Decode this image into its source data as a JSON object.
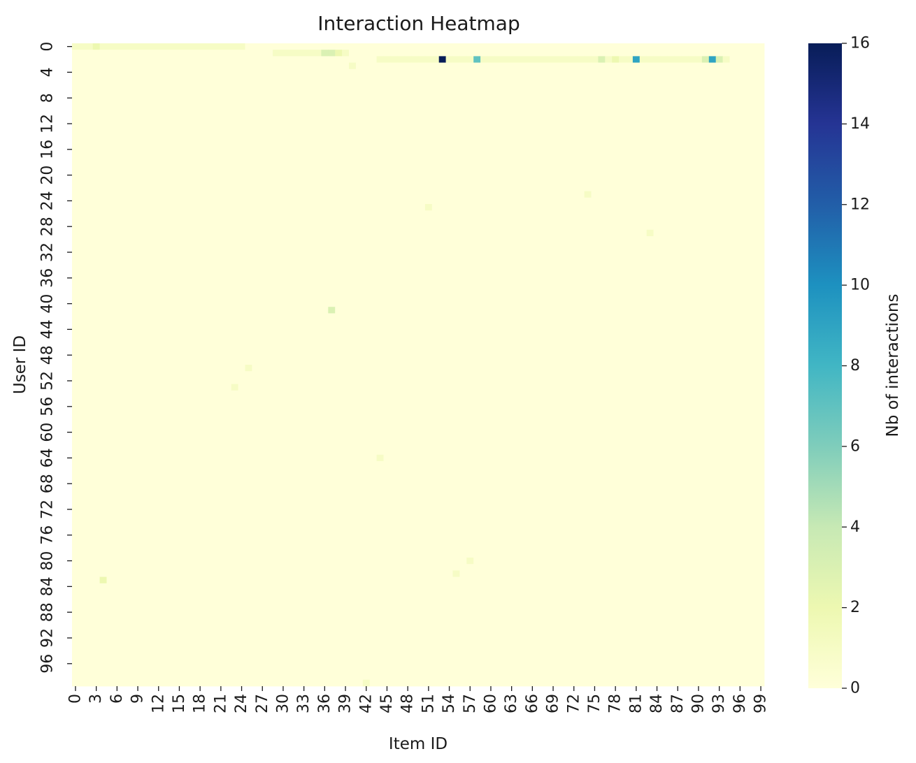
{
  "chart_data": {
    "type": "heatmap",
    "title": "Interaction Heatmap",
    "xlabel": "Item ID",
    "ylabel": "User ID",
    "colorbar_label": "Nb of interactions",
    "colormap": "YlGnBu",
    "colormap_stops": [
      "#ffffd9",
      "#edf8b1",
      "#c7e9b4",
      "#7fcdbb",
      "#41b6c4",
      "#1d91c0",
      "#225ea8",
      "#253494",
      "#081d58"
    ],
    "vmin": 0,
    "vmax": 16,
    "colorbar_ticks": [
      "0",
      "2",
      "4",
      "6",
      "8",
      "10",
      "12",
      "14",
      "16"
    ],
    "rows": 100,
    "cols": 100,
    "x_ticks": [
      "0",
      "3",
      "6",
      "9",
      "12",
      "15",
      "18",
      "21",
      "24",
      "27",
      "30",
      "33",
      "36",
      "39",
      "42",
      "45",
      "48",
      "51",
      "54",
      "57",
      "60",
      "63",
      "66",
      "69",
      "72",
      "75",
      "78",
      "81",
      "84",
      "87",
      "90",
      "93",
      "96",
      "99"
    ],
    "y_ticks": [
      "0",
      "4",
      "8",
      "12",
      "16",
      "20",
      "24",
      "28",
      "32",
      "36",
      "40",
      "44",
      "48",
      "52",
      "56",
      "60",
      "64",
      "68",
      "72",
      "76",
      "80",
      "84",
      "88",
      "92",
      "96"
    ],
    "default_value": 0,
    "row_ranges": [
      {
        "user": 0,
        "items_from": 0,
        "items_to": 24,
        "value": 1
      },
      {
        "user": 1,
        "items_from": 29,
        "items_to": 39,
        "value": 1
      },
      {
        "user": 2,
        "items_from": 44,
        "items_to": 94,
        "value": 1
      }
    ],
    "cells": [
      {
        "user": 0,
        "item": 3,
        "value": 2
      },
      {
        "user": 1,
        "item": 36,
        "value": 3
      },
      {
        "user": 1,
        "item": 37,
        "value": 3
      },
      {
        "user": 1,
        "item": 38,
        "value": 2
      },
      {
        "user": 2,
        "item": 53,
        "value": 16
      },
      {
        "user": 2,
        "item": 58,
        "value": 7
      },
      {
        "user": 2,
        "item": 76,
        "value": 3
      },
      {
        "user": 2,
        "item": 78,
        "value": 2
      },
      {
        "user": 2,
        "item": 81,
        "value": 9
      },
      {
        "user": 2,
        "item": 91,
        "value": 3
      },
      {
        "user": 2,
        "item": 92,
        "value": 9
      },
      {
        "user": 2,
        "item": 93,
        "value": 3
      },
      {
        "user": 3,
        "item": 40,
        "value": 1
      },
      {
        "user": 23,
        "item": 74,
        "value": 1
      },
      {
        "user": 25,
        "item": 51,
        "value": 1
      },
      {
        "user": 29,
        "item": 83,
        "value": 1
      },
      {
        "user": 41,
        "item": 37,
        "value": 3
      },
      {
        "user": 50,
        "item": 25,
        "value": 1
      },
      {
        "user": 53,
        "item": 23,
        "value": 1
      },
      {
        "user": 64,
        "item": 44,
        "value": 1
      },
      {
        "user": 80,
        "item": 57,
        "value": 1
      },
      {
        "user": 82,
        "item": 55,
        "value": 1
      },
      {
        "user": 83,
        "item": 4,
        "value": 2
      },
      {
        "user": 99,
        "item": 42,
        "value": 1
      }
    ]
  }
}
